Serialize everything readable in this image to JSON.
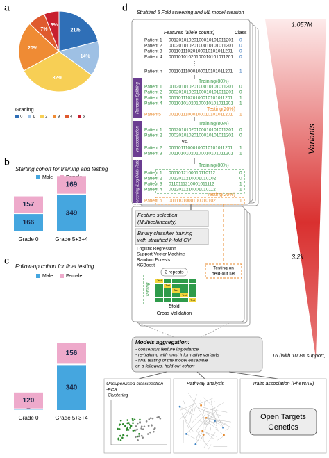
{
  "panel_labels": [
    "a",
    "b",
    "c",
    "d"
  ],
  "chart_data": [
    {
      "type": "pie",
      "legend_title": "Grading",
      "categories": [
        "0",
        "1",
        "2",
        "3",
        "4",
        "5"
      ],
      "values": [
        21,
        14,
        32,
        20,
        7,
        6
      ],
      "value_labels": [
        "21%",
        "14%",
        "32%",
        "20%",
        "7%",
        "6%"
      ],
      "colors": [
        "#2f6fb7",
        "#9ec0e4",
        "#f7cf55",
        "#ef8b34",
        "#df5a2e",
        "#c8202f"
      ]
    },
    {
      "type": "stacked_bar",
      "title": "Starting cohort for training and testing",
      "categories": [
        "Grade 0",
        "Grade 5+3+4"
      ],
      "series": [
        {
          "name": "Male",
          "color": "#45a6df",
          "values": [
            166,
            349
          ]
        },
        {
          "name": "Female",
          "color": "#eeaacb",
          "values": [
            157,
            169
          ]
        }
      ],
      "legend": "top"
    },
    {
      "type": "stacked_bar",
      "title": "Follow-up cohort for final testing",
      "categories": [
        "Grade 0",
        "Grade 5+3+4"
      ],
      "series": [
        {
          "name": "Male",
          "color": "#45a6df",
          "values": [
            2,
            340
          ]
        },
        {
          "name": "Female",
          "color": "#eeaacb",
          "values": [
            120,
            156
          ]
        }
      ],
      "legend": "top"
    }
  ],
  "diagram": {
    "title": "Stratified 5 Fold screening and ML model creation",
    "table_header": [
      "Features (allele counts)",
      "Class"
    ],
    "all_patients": [
      [
        "Patient 1",
        "00120101020100010101011201",
        "0"
      ],
      [
        "Patient 2",
        "00020101020100010101011201",
        "0"
      ],
      [
        "Patient 3",
        "00110111020100010101011201",
        "0"
      ],
      [
        "Patient 4",
        "00110101020100010101011201",
        "0"
      ]
    ],
    "ellipsis": "⋮",
    "patient_n": [
      [
        "Patient n",
        "00110111000100010101011201",
        "1"
      ]
    ],
    "training": "Training(80%)",
    "testing": "Testing(20%)",
    "split_rows": [
      [
        "Patient 1",
        "00120101020100010101011201",
        "0"
      ],
      [
        "Patient 2",
        "00020101020100010101011201",
        "0"
      ],
      [
        "Patient 3",
        "00110111020100010101011201",
        "1"
      ],
      [
        "Patient 4",
        "00110101020100010101011201",
        "1"
      ]
    ],
    "split_test": [
      [
        "Patient5",
        "00110111000100010101011201",
        "1"
      ]
    ],
    "assoc_rows": [
      [
        "Patient 1",
        "00120101020100010101011201",
        "0"
      ],
      [
        "Patient 2",
        "00020101020100010101011201",
        "0"
      ]
    ],
    "vs": "vs.",
    "assoc_rows2": [
      [
        "Patient 2",
        "00110111000100010101011201",
        "1"
      ],
      [
        "Patient 3",
        "00110101020100010101011201",
        "1"
      ]
    ],
    "screen_rows": [
      [
        "Patient 1",
        "0011012100010110112",
        "0"
      ],
      [
        "Patient 2",
        "0012011210001010102",
        "0"
      ],
      [
        "Patient 3",
        "0110111210001011112",
        "1"
      ],
      [
        "Patient 4",
        "0012011210001010112",
        "1"
      ]
    ],
    "screen_test": [
      [
        "Patient 5",
        "0011101000100010102",
        "1"
      ]
    ],
    "side_labels": [
      "Random Splitting",
      "vs association",
      "Screening (Log Odds Ratio)"
    ],
    "feature_selection": [
      "Feature selection",
      "(Multicollinearity)"
    ],
    "classifier_training": [
      "Binary classifier training",
      "with stratified k-fold CV"
    ],
    "classifiers": [
      "Logistic Regression",
      "Support Vector Machine",
      "Random Forests",
      "XGBoost"
    ],
    "repeats": "3 repeats",
    "cv_training": "Training",
    "test_cell": "Test",
    "cross_validation": [
      "5fold",
      "Cross Validation"
    ],
    "held_out": [
      "Testing on",
      "held-out set"
    ],
    "aggregation": {
      "title": "Models aggregation:",
      "lines": [
        "- consensus feature importance",
        "- re-training with most informative variants",
        "- final testing of the model ensemble",
        "  on a followup, held-out cohort"
      ]
    },
    "unsupervised": [
      "Unsupervised classification",
      "-PCA",
      "-Clustering"
    ],
    "pathway": "Pathway analysis",
    "traits": "Traits association (PheWAS)",
    "open_targets": [
      "Open Targets",
      "Genetics"
    ],
    "variants": {
      "top": "1.057M",
      "middle": "3.2k",
      "bottom": "16 (with 100% support,",
      "axis": "Variants"
    }
  }
}
